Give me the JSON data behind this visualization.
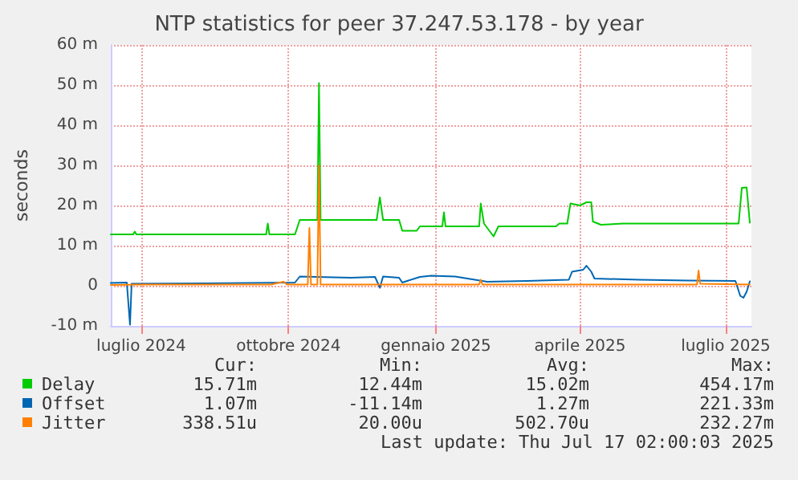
{
  "chart_data": {
    "type": "line",
    "title": "NTP statistics for peer 37.247.53.178 - by year",
    "ylabel": "seconds",
    "xlim": [
      "2024-06-12",
      "2025-07-17"
    ],
    "xticks": [
      {
        "value": "2024-07-01",
        "label": "luglio 2024"
      },
      {
        "value": "2024-10-01",
        "label": "ottobre 2024"
      },
      {
        "value": "2025-01-01",
        "label": "gennaio 2025"
      },
      {
        "value": "2025-04-01",
        "label": "aprile 2025"
      },
      {
        "value": "2025-07-01",
        "label": "luglio 2025"
      }
    ],
    "ylim": [
      -10,
      60
    ],
    "yticks": [
      {
        "value": -10,
        "label": "-10 m"
      },
      0,
      {
        "value": 10,
        "label": "10 m"
      },
      {
        "value": 20,
        "label": "20 m"
      },
      {
        "value": 30,
        "label": "30 m"
      },
      {
        "value": 40,
        "label": "40 m"
      },
      {
        "value": 50,
        "label": "50 m"
      },
      {
        "value": 60,
        "label": "60 m"
      }
    ],
    "grid": true,
    "legend": "bottom",
    "marker": "none",
    "line_style": "solid",
    "series": [
      {
        "name": "Delay",
        "color": "#00cc00",
        "x": [
          "2024-06-12",
          "2024-06-26",
          "2024-06-27",
          "2024-06-28",
          "2024-09-17",
          "2024-09-18",
          "2024-09-19",
          "2024-10-05",
          "2024-10-08",
          "2024-10-19",
          "2024-10-20",
          "2024-10-21",
          "2024-11-25",
          "2024-11-27",
          "2024-11-29",
          "2024-12-09",
          "2024-12-11",
          "2024-12-20",
          "2024-12-22",
          "2025-01-05",
          "2025-01-06",
          "2025-01-07",
          "2025-01-28",
          "2025-01-29",
          "2025-01-31",
          "2025-02-06",
          "2025-02-09",
          "2025-03-17",
          "2025-03-19",
          "2025-03-24",
          "2025-03-26",
          "2025-04-01",
          "2025-04-05",
          "2025-04-08",
          "2025-04-09",
          "2025-04-14",
          "2025-04-28",
          "2025-07-09",
          "2025-07-11",
          "2025-07-14",
          "2025-07-16"
        ],
        "values": [
          12.8,
          12.8,
          13.5,
          12.8,
          12.8,
          15.5,
          12.8,
          12.8,
          16.4,
          16.4,
          50.5,
          16.4,
          16.4,
          22,
          16.4,
          16.4,
          13.7,
          13.7,
          14.8,
          14.8,
          18.3,
          14.8,
          14.8,
          20.5,
          15.5,
          12.3,
          14.8,
          14.8,
          15.5,
          15.5,
          20.5,
          20,
          20.8,
          20.8,
          16,
          15.2,
          15.5,
          15.5,
          24.4,
          24.5,
          15.7
        ]
      },
      {
        "name": "Offset",
        "color": "#0066b3",
        "x": [
          "2024-06-12",
          "2024-06-22",
          "2024-06-24",
          "2024-06-25",
          "2024-08-11",
          "2024-10-05",
          "2024-10-08",
          "2024-11-09",
          "2024-11-24",
          "2024-11-27",
          "2024-11-29",
          "2024-12-09",
          "2024-12-11",
          "2024-12-22",
          "2024-12-29",
          "2025-01-13",
          "2025-02-02",
          "2025-02-27",
          "2025-03-25",
          "2025-03-27",
          "2025-04-03",
          "2025-04-05",
          "2025-04-08",
          "2025-04-10",
          "2025-05-08",
          "2025-06-07",
          "2025-07-07",
          "2025-07-10",
          "2025-07-12",
          "2025-07-14",
          "2025-07-16"
        ],
        "values": [
          0.7,
          0.8,
          -9.7,
          0.5,
          0.6,
          0.8,
          2.3,
          2,
          2.2,
          -0.5,
          2.3,
          2,
          0.8,
          2.2,
          2.5,
          2.3,
          1,
          1.2,
          1.5,
          3.5,
          4,
          5,
          3.5,
          1.8,
          1.5,
          1.3,
          1.2,
          -2.5,
          -3,
          -1.5,
          1.1
        ]
      },
      {
        "name": "Jitter",
        "color": "#ff8000",
        "x": [
          "2024-06-12",
          "2024-07-02",
          "2024-09-20",
          "2024-09-28",
          "2024-09-30",
          "2024-10-13",
          "2024-10-14",
          "2024-10-15",
          "2024-10-19",
          "2024-10-20",
          "2024-10-21",
          "2025-01-28",
          "2025-01-29",
          "2025-01-30",
          "2025-06-13",
          "2025-06-14",
          "2025-06-15",
          "2025-07-16"
        ],
        "values": [
          0.2,
          0.3,
          0.3,
          1,
          0.3,
          0.3,
          14.4,
          0.3,
          0.3,
          30,
          0.3,
          0.3,
          1.5,
          0.3,
          0.3,
          3.8,
          0.5,
          0.3
        ]
      }
    ],
    "annotations": [
      "Cur:",
      "Min:",
      "Avg:",
      "Max:",
      "15.71m",
      "12.44m",
      "15.02m",
      "454.17m",
      "1.07m",
      "-11.14m",
      "1.27m",
      "221.33m",
      "338.51u",
      "20.00u",
      "502.70u",
      "232.27m",
      "Last update: Thu Jul 17 02:00:03 2025"
    ]
  }
}
